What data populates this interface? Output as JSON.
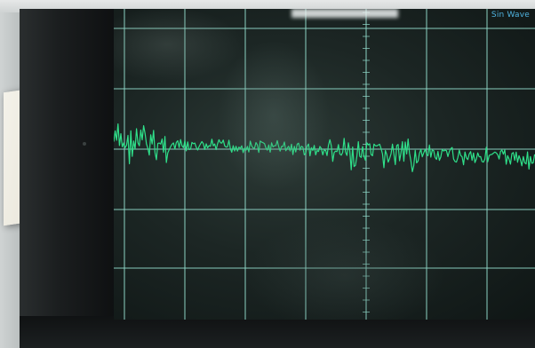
{
  "scope": {
    "screen_label": "Sin Wave",
    "trace_color": "#2fe08a",
    "grid_color": "#8fd8c8",
    "screen_color": "#1c2624"
  }
}
